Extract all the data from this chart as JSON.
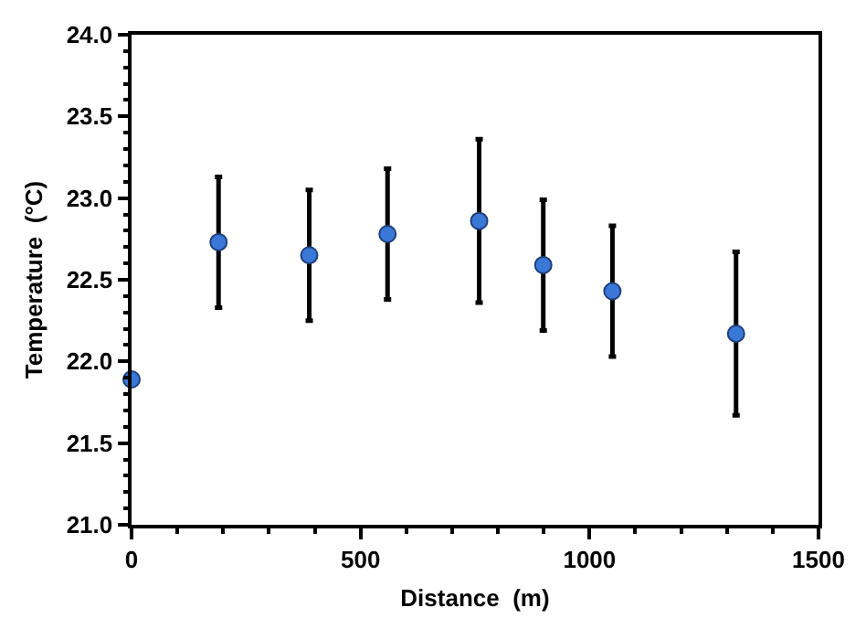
{
  "chart_data": {
    "type": "scatter",
    "xlabel": "Distance  (m)",
    "ylabel": "Temperature  (°C)",
    "x": [
      0,
      190,
      388,
      559,
      759,
      899,
      1050,
      1320
    ],
    "values": [
      21.89,
      22.73,
      22.65,
      22.78,
      22.86,
      22.59,
      22.43,
      22.17
    ],
    "errors": [
      null,
      0.4,
      0.4,
      0.4,
      0.5,
      0.4,
      0.4,
      0.5
    ],
    "color": "#3a78d8",
    "marker": "circle",
    "xlim": [
      0,
      1500
    ],
    "xticks": [
      0,
      500,
      1000,
      1500
    ],
    "ylim": [
      21.0,
      24.0
    ],
    "yticks": [
      {
        "value": 21.0,
        "label": "21.0"
      },
      {
        "value": 21.5,
        "label": "21.5"
      },
      {
        "value": 22.0,
        "label": "22.0"
      },
      {
        "value": 22.5,
        "label": "22.5"
      },
      {
        "value": 23.0,
        "label": "23.0"
      },
      {
        "value": 23.5,
        "label": "23.5"
      },
      {
        "value": 24.0,
        "label": "24.0"
      }
    ],
    "grid": false
  }
}
